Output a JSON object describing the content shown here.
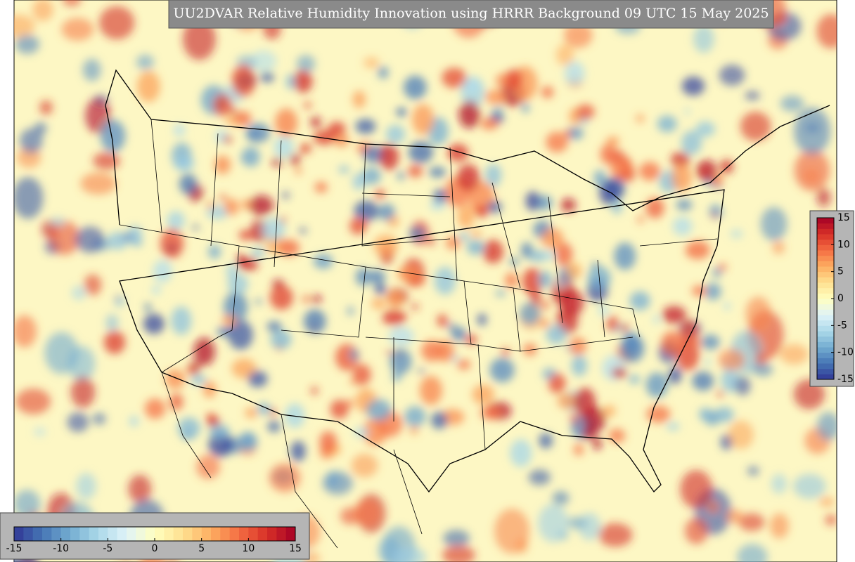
{
  "title": "UU2DVAR Relative Humidity Innovation using HRRR Background 09 UTC 15 May 2025",
  "colorbar_bottom": {
    "range": [
      -15,
      15
    ],
    "ticks": [
      -15,
      -10,
      -5,
      0,
      5,
      10,
      15
    ]
  },
  "colorbar_right": {
    "range": [
      -15,
      15
    ],
    "ticks": [
      15,
      10,
      5,
      0,
      -5,
      -10,
      -15
    ]
  }
}
